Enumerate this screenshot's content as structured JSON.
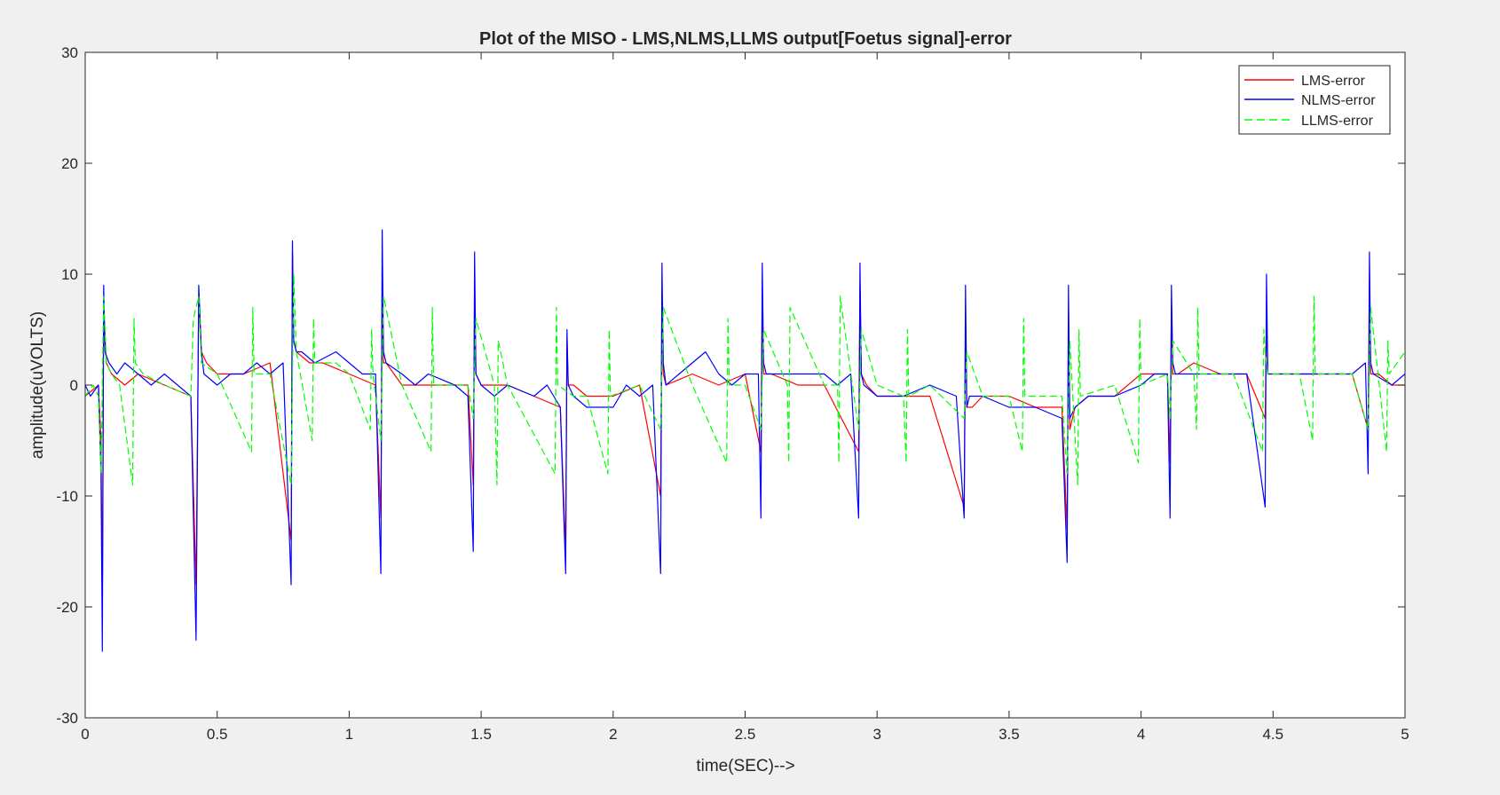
{
  "figure": {
    "background": "#f0f0f0",
    "axes_background": "#ffffff"
  },
  "chart_data": {
    "type": "line",
    "title": "Plot of the MISO - LMS,NLMS,LLMS output[Foetus signal]-error",
    "xlabel": "time(SEC)-->",
    "ylabel": "amplitude(uVOLTS)",
    "xlim": [
      0,
      5
    ],
    "ylim": [
      -30,
      30
    ],
    "xticks": [
      0,
      0.5,
      1,
      1.5,
      2,
      2.5,
      3,
      3.5,
      4,
      4.5,
      5
    ],
    "xtick_labels": [
      "0",
      "0.5",
      "1",
      "1.5",
      "2",
      "2.5",
      "3",
      "3.5",
      "4",
      "4.5",
      "5"
    ],
    "yticks": [
      -30,
      -20,
      -10,
      0,
      10,
      20,
      30
    ],
    "ytick_labels": [
      "-30",
      "-20",
      "-10",
      "0",
      "10",
      "20",
      "30"
    ],
    "grid": false,
    "legend_position": "top-right",
    "series": [
      {
        "name": "LMS-error",
        "color": "#ff0000",
        "style": "solid",
        "x": [
          0,
          0.05,
          0.06,
          0.065,
          0.07,
          0.08,
          0.1,
          0.15,
          0.2,
          0.3,
          0.4,
          0.42,
          0.43,
          0.44,
          0.46,
          0.5,
          0.6,
          0.7,
          0.78,
          0.785,
          0.79,
          0.8,
          0.85,
          0.9,
          1.0,
          1.1,
          1.12,
          1.125,
          1.13,
          1.14,
          1.2,
          1.3,
          1.45,
          1.47,
          1.475,
          1.48,
          1.5,
          1.6,
          1.7,
          1.8,
          1.82,
          1.825,
          1.83,
          1.85,
          1.9,
          2.0,
          2.1,
          2.18,
          2.185,
          2.19,
          2.2,
          2.3,
          2.4,
          2.5,
          2.56,
          2.565,
          2.57,
          2.6,
          2.7,
          2.8,
          2.93,
          2.935,
          2.94,
          2.96,
          3.0,
          3.1,
          3.2,
          3.33,
          3.335,
          3.34,
          3.36,
          3.4,
          3.5,
          3.6,
          3.7,
          3.72,
          3.725,
          3.73,
          3.75,
          3.8,
          3.9,
          4.0,
          4.1,
          4.11,
          4.115,
          4.12,
          4.14,
          4.2,
          4.3,
          4.4,
          4.47,
          4.475,
          4.48,
          4.5,
          4.6,
          4.7,
          4.8,
          4.86,
          4.865,
          4.87,
          4.9,
          4.95,
          5.0
        ],
        "y": [
          -1,
          0,
          -5,
          -20,
          7,
          2,
          1,
          0,
          1,
          0,
          -1,
          -18,
          8,
          3,
          2,
          1,
          1,
          2,
          -14,
          12,
          4,
          3,
          2,
          2,
          1,
          0,
          -12,
          9,
          2,
          2,
          0,
          0,
          0,
          -9,
          8,
          1,
          0,
          0,
          -1,
          -2,
          -15,
          4,
          0,
          0,
          -1,
          -1,
          0,
          -10,
          8,
          1,
          0,
          1,
          0,
          1,
          -6,
          8,
          1,
          1,
          0,
          0,
          -6,
          9,
          1,
          0,
          -1,
          -1,
          -1,
          -11,
          4,
          -2,
          -2,
          -1,
          -1,
          -2,
          -2,
          -13,
          5,
          -4,
          -2,
          -1,
          -1,
          1,
          1,
          -7,
          7,
          1,
          1,
          2,
          1,
          1,
          -3,
          6,
          1,
          1,
          1,
          1,
          1,
          -4,
          7,
          1,
          1,
          0,
          0
        ]
      },
      {
        "name": "NLMS-error",
        "color": "#0000ff",
        "style": "solid",
        "x": [
          0,
          0.02,
          0.05,
          0.06,
          0.065,
          0.07,
          0.075,
          0.09,
          0.12,
          0.15,
          0.2,
          0.25,
          0.3,
          0.35,
          0.4,
          0.42,
          0.43,
          0.44,
          0.45,
          0.5,
          0.55,
          0.6,
          0.65,
          0.7,
          0.75,
          0.78,
          0.785,
          0.79,
          0.8,
          0.82,
          0.87,
          0.95,
          1.0,
          1.05,
          1.1,
          1.12,
          1.125,
          1.13,
          1.14,
          1.2,
          1.25,
          1.3,
          1.4,
          1.45,
          1.47,
          1.475,
          1.48,
          1.5,
          1.55,
          1.6,
          1.7,
          1.75,
          1.8,
          1.82,
          1.825,
          1.83,
          1.85,
          1.9,
          2.0,
          2.05,
          2.1,
          2.15,
          2.18,
          2.185,
          2.19,
          2.2,
          2.25,
          2.3,
          2.35,
          2.4,
          2.45,
          2.5,
          2.55,
          2.56,
          2.565,
          2.57,
          2.58,
          2.65,
          2.7,
          2.8,
          2.85,
          2.9,
          2.93,
          2.935,
          2.94,
          2.95,
          3.0,
          3.1,
          3.2,
          3.3,
          3.33,
          3.335,
          3.34,
          3.35,
          3.4,
          3.5,
          3.6,
          3.7,
          3.72,
          3.725,
          3.73,
          3.75,
          3.8,
          3.9,
          4.0,
          4.05,
          4.1,
          4.11,
          4.115,
          4.12,
          4.13,
          4.2,
          4.3,
          4.4,
          4.47,
          4.475,
          4.48,
          4.5,
          4.6,
          4.7,
          4.8,
          4.85,
          4.86,
          4.865,
          4.87,
          4.88,
          4.95,
          5.0
        ],
        "y": [
          0,
          -1,
          0,
          -8,
          -24,
          9,
          3,
          2,
          1,
          2,
          1,
          0,
          1,
          0,
          -1,
          -23,
          9,
          3,
          1,
          0,
          1,
          1,
          2,
          1,
          2,
          -18,
          13,
          4,
          3,
          3,
          2,
          3,
          2,
          1,
          1,
          -17,
          14,
          3,
          2,
          1,
          0,
          1,
          0,
          -1,
          -15,
          12,
          1,
          0,
          -1,
          0,
          -1,
          0,
          -2,
          -17,
          5,
          0,
          -1,
          -2,
          -2,
          0,
          -1,
          0,
          -17,
          11,
          2,
          0,
          1,
          2,
          3,
          1,
          0,
          1,
          1,
          -12,
          11,
          2,
          1,
          1,
          1,
          1,
          0,
          1,
          -12,
          11,
          1,
          0,
          -1,
          -1,
          0,
          -1,
          -12,
          9,
          -2,
          -1,
          -1,
          -2,
          -2,
          -3,
          -16,
          9,
          -3,
          -2,
          -1,
          -1,
          0,
          1,
          1,
          -12,
          9,
          2,
          1,
          1,
          1,
          1,
          -11,
          10,
          1,
          1,
          1,
          1,
          1,
          2,
          -8,
          12,
          2,
          1,
          0,
          1
        ]
      },
      {
        "name": "LLMS-error",
        "color": "#00ff00",
        "style": "dashed",
        "x": [
          0,
          0.03,
          0.05,
          0.06,
          0.07,
          0.08,
          0.1,
          0.13,
          0.18,
          0.185,
          0.19,
          0.22,
          0.3,
          0.4,
          0.41,
          0.43,
          0.44,
          0.5,
          0.63,
          0.635,
          0.64,
          0.7,
          0.78,
          0.79,
          0.8,
          0.86,
          0.865,
          0.87,
          0.95,
          1.0,
          1.08,
          1.085,
          1.09,
          1.12,
          1.13,
          1.2,
          1.31,
          1.315,
          1.32,
          1.45,
          1.47,
          1.48,
          1.55,
          1.56,
          1.565,
          1.6,
          1.78,
          1.785,
          1.79,
          1.85,
          1.9,
          1.98,
          1.985,
          1.99,
          2.1,
          2.18,
          2.19,
          2.3,
          2.43,
          2.435,
          2.44,
          2.5,
          2.56,
          2.57,
          2.66,
          2.665,
          2.67,
          2.8,
          2.85,
          2.855,
          2.86,
          2.93,
          2.94,
          3.0,
          3.1,
          3.11,
          3.115,
          3.12,
          3.2,
          3.33,
          3.34,
          3.4,
          3.5,
          3.55,
          3.555,
          3.56,
          3.7,
          3.72,
          3.73,
          3.76,
          3.765,
          3.77,
          3.9,
          3.99,
          3.995,
          4.0,
          4.1,
          4.11,
          4.12,
          4.2,
          4.21,
          4.215,
          4.22,
          4.35,
          4.46,
          4.465,
          4.47,
          4.48,
          4.6,
          4.65,
          4.655,
          4.66,
          4.8,
          4.86,
          4.87,
          4.93,
          4.935,
          4.94,
          5.0
        ],
        "y": [
          -1,
          0,
          -1,
          -8,
          8,
          2,
          1,
          0,
          -9,
          6,
          2,
          1,
          0,
          -1,
          6,
          8,
          2,
          1,
          -6,
          7,
          1,
          1,
          -9,
          10,
          3,
          -5,
          6,
          2,
          2,
          1,
          -4,
          5,
          1,
          -5,
          8,
          0,
          -6,
          7,
          0,
          0,
          -3,
          6,
          0,
          -9,
          4,
          0,
          -8,
          7,
          0,
          -1,
          -1,
          -8,
          5,
          -1,
          0,
          -4,
          7,
          0,
          -7,
          6,
          0,
          0,
          -4,
          5,
          0,
          -7,
          7,
          0,
          0,
          -7,
          8,
          -4,
          5,
          0,
          -1,
          -7,
          5,
          -1,
          0,
          -3,
          3,
          -1,
          -1,
          -6,
          6,
          -1,
          -1,
          -8,
          4,
          -9,
          5,
          -1,
          0,
          -7,
          6,
          0,
          1,
          -3,
          4,
          1,
          -4,
          7,
          1,
          1,
          -6,
          5,
          3,
          1,
          1,
          -5,
          8,
          1,
          1,
          -4,
          7,
          -6,
          4,
          1,
          3
        ]
      }
    ]
  }
}
